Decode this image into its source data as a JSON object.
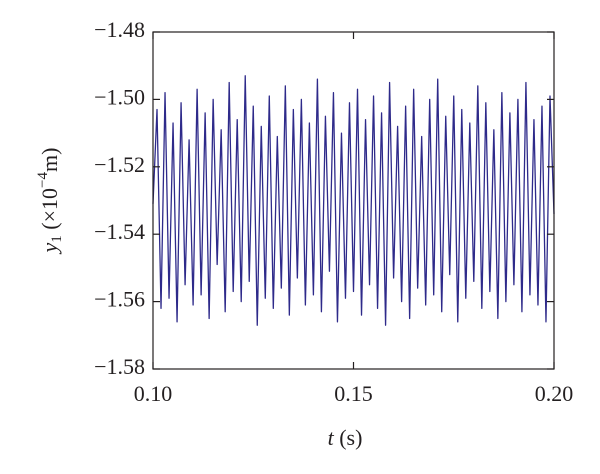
{
  "chart_data": {
    "type": "line",
    "xlabel": {
      "var": "t",
      "unit": " (s)"
    },
    "ylabel": {
      "var": "y",
      "sub": "1",
      "pre": " (×10",
      "exp": "−4",
      "post": "m)"
    },
    "x": [
      0.1,
      0.101,
      0.102,
      0.103,
      0.104,
      0.105,
      0.106,
      0.107,
      0.108,
      0.109,
      0.11,
      0.111,
      0.112,
      0.113,
      0.114,
      0.115,
      0.116,
      0.117,
      0.118,
      0.119,
      0.12,
      0.121,
      0.122,
      0.123,
      0.124,
      0.125,
      0.126,
      0.127,
      0.128,
      0.129,
      0.13,
      0.131,
      0.132,
      0.133,
      0.134,
      0.135,
      0.136,
      0.137,
      0.138,
      0.139,
      0.14,
      0.141,
      0.142,
      0.143,
      0.144,
      0.145,
      0.146,
      0.147,
      0.148,
      0.149,
      0.15,
      0.151,
      0.152,
      0.153,
      0.154,
      0.155,
      0.156,
      0.157,
      0.158,
      0.159,
      0.16,
      0.161,
      0.162,
      0.163,
      0.164,
      0.165,
      0.166,
      0.167,
      0.168,
      0.169,
      0.17,
      0.171,
      0.172,
      0.173,
      0.174,
      0.175,
      0.176,
      0.177,
      0.178,
      0.179,
      0.18,
      0.181,
      0.182,
      0.183,
      0.184,
      0.185,
      0.186,
      0.187,
      0.188,
      0.189,
      0.19,
      0.191,
      0.192,
      0.193,
      0.194,
      0.195,
      0.196,
      0.197,
      0.198,
      0.199,
      0.2
    ],
    "series": [
      {
        "color": "#2e2a8a",
        "values": [
          -1.531,
          -1.503,
          -1.562,
          -1.498,
          -1.559,
          -1.507,
          -1.566,
          -1.501,
          -1.555,
          -1.512,
          -1.561,
          -1.497,
          -1.558,
          -1.504,
          -1.565,
          -1.5,
          -1.549,
          -1.509,
          -1.563,
          -1.495,
          -1.557,
          -1.506,
          -1.56,
          -1.493,
          -1.554,
          -1.502,
          -1.567,
          -1.508,
          -1.559,
          -1.499,
          -1.562,
          -1.511,
          -1.556,
          -1.496,
          -1.564,
          -1.503,
          -1.553,
          -1.5,
          -1.561,
          -1.507,
          -1.558,
          -1.494,
          -1.563,
          -1.505,
          -1.551,
          -1.498,
          -1.566,
          -1.51,
          -1.559,
          -1.501,
          -1.557,
          -1.497,
          -1.564,
          -1.506,
          -1.555,
          -1.499,
          -1.562,
          -1.504,
          -1.567,
          -1.495,
          -1.553,
          -1.508,
          -1.56,
          -1.502,
          -1.565,
          -1.497,
          -1.556,
          -1.511,
          -1.561,
          -1.5,
          -1.558,
          -1.494,
          -1.563,
          -1.505,
          -1.552,
          -1.499,
          -1.566,
          -1.503,
          -1.559,
          -1.507,
          -1.554,
          -1.496,
          -1.562,
          -1.501,
          -1.557,
          -1.509,
          -1.565,
          -1.498,
          -1.56,
          -1.504,
          -1.555,
          -1.5,
          -1.563,
          -1.495,
          -1.558,
          -1.506,
          -1.561,
          -1.502,
          -1.566,
          -1.499,
          -1.534
        ]
      }
    ],
    "xlim": [
      0.1,
      0.2
    ],
    "xticks": [
      {
        "value": 0.1,
        "label": "0.10"
      },
      {
        "value": 0.15,
        "label": "0.15"
      },
      {
        "value": 0.2,
        "label": "0.20"
      }
    ],
    "ylim": [
      -1.58,
      -1.48
    ],
    "yticks": [
      {
        "value": -1.58,
        "label": "−1.58"
      },
      {
        "value": -1.56,
        "label": "−1.56"
      },
      {
        "value": -1.54,
        "label": "−1.54"
      },
      {
        "value": -1.52,
        "label": "−1.52"
      },
      {
        "value": -1.5,
        "label": "−1.50"
      },
      {
        "value": -1.48,
        "label": "−1.48"
      }
    ]
  }
}
